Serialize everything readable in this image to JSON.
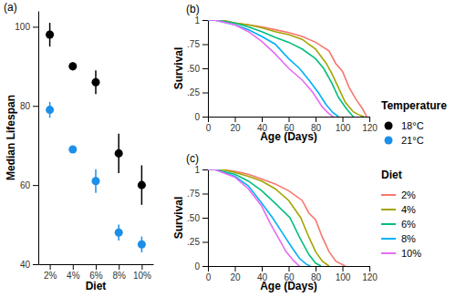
{
  "chart_data": [
    {
      "type": "scatter",
      "title": "(a)",
      "x_label": "Diet",
      "y_label": "Median Lifespan",
      "categories": [
        "2%",
        "4%",
        "6%",
        "8%",
        "10%"
      ],
      "ylim": [
        40,
        104
      ],
      "yticks": [
        40,
        60,
        80,
        100
      ],
      "legend": "right",
      "legend_title": "Temperature",
      "marker": "circle",
      "series": [
        {
          "name": "18°C",
          "color": "#000000",
          "values": [
            98,
            90,
            86,
            68,
            60
          ],
          "errors": [
            3,
            1,
            3,
            5,
            5
          ]
        },
        {
          "name": "21°C",
          "color": "#1C8FE8",
          "values": [
            79,
            69,
            61,
            48,
            45
          ],
          "errors": [
            2,
            0.5,
            3,
            2,
            2
          ]
        }
      ]
    },
    {
      "type": "line",
      "title": "(b)",
      "x_label": "Age (Days)",
      "y_label": "Survival",
      "xlim": [
        0,
        120
      ],
      "xticks": [
        0,
        20,
        40,
        60,
        80,
        100,
        120
      ],
      "ylim": [
        0,
        1
      ],
      "yticks": [
        0,
        {
          "value": 0.25,
          "label": ".25"
        },
        {
          "value": 0.5,
          "label": ".50"
        },
        {
          "value": 0.75,
          "label": ".75"
        },
        1
      ],
      "legend": "right",
      "legend_title": "Diet",
      "series": [
        {
          "name": "2%",
          "color": "#F8766D",
          "x": [
            0,
            10,
            20,
            30,
            40,
            50,
            60,
            70,
            80,
            90,
            95,
            100,
            105,
            110,
            115,
            118
          ],
          "values": [
            1,
            1,
            0.97,
            0.95,
            0.93,
            0.9,
            0.87,
            0.83,
            0.77,
            0.68,
            0.55,
            0.47,
            0.3,
            0.18,
            0.08,
            0
          ]
        },
        {
          "name": "4%",
          "color": "#A3A500",
          "x": [
            0,
            10,
            20,
            30,
            40,
            50,
            60,
            70,
            80,
            88,
            92,
            97,
            102,
            108,
            112,
            116
          ],
          "values": [
            1,
            1,
            0.97,
            0.95,
            0.92,
            0.88,
            0.85,
            0.8,
            0.7,
            0.55,
            0.45,
            0.3,
            0.15,
            0.05,
            0.02,
            0
          ]
        },
        {
          "name": "6%",
          "color": "#00BF7D",
          "x": [
            0,
            5,
            20,
            30,
            40,
            50,
            60,
            70,
            80,
            86,
            92,
            97,
            103,
            108
          ],
          "values": [
            1,
            1,
            0.97,
            0.93,
            0.88,
            0.82,
            0.77,
            0.7,
            0.6,
            0.5,
            0.35,
            0.2,
            0.08,
            0
          ]
        },
        {
          "name": "8%",
          "color": "#00B0F6",
          "x": [
            0,
            5,
            20,
            30,
            40,
            50,
            60,
            68,
            75,
            82,
            88,
            93,
            97
          ],
          "values": [
            1,
            1,
            0.95,
            0.9,
            0.83,
            0.75,
            0.6,
            0.5,
            0.38,
            0.25,
            0.12,
            0.04,
            0
          ]
        },
        {
          "name": "10%",
          "color": "#E76BF3",
          "x": [
            0,
            5,
            20,
            30,
            40,
            50,
            60,
            70,
            78,
            85,
            90,
            93
          ],
          "values": [
            1,
            1,
            0.95,
            0.88,
            0.78,
            0.65,
            0.5,
            0.38,
            0.25,
            0.1,
            0.03,
            0
          ]
        }
      ]
    },
    {
      "type": "line",
      "title": "(c)",
      "x_label": "Age (Days)",
      "y_label": "Survival",
      "xlim": [
        0,
        120
      ],
      "xticks": [
        0,
        20,
        40,
        60,
        80,
        100,
        120
      ],
      "ylim": [
        0,
        1
      ],
      "yticks": [
        0,
        {
          "value": 0.25,
          "label": ".25"
        },
        {
          "value": 0.5,
          "label": ".50"
        },
        {
          "value": 0.75,
          "label": ".75"
        },
        1
      ],
      "series": [
        {
          "color": "#F8766D",
          "x": [
            0,
            10,
            20,
            30,
            40,
            50,
            60,
            70,
            75,
            80,
            85,
            90,
            95,
            102
          ],
          "values": [
            1,
            1,
            0.98,
            0.95,
            0.9,
            0.85,
            0.78,
            0.68,
            0.55,
            0.48,
            0.3,
            0.15,
            0.05,
            0
          ]
        },
        {
          "color": "#A3A500",
          "x": [
            0,
            10,
            20,
            30,
            40,
            50,
            60,
            69,
            75,
            80,
            85,
            90
          ],
          "values": [
            1,
            1,
            0.97,
            0.93,
            0.88,
            0.8,
            0.68,
            0.5,
            0.3,
            0.15,
            0.05,
            0
          ]
        },
        {
          "color": "#00BF7D",
          "x": [
            0,
            5,
            20,
            30,
            40,
            50,
            61,
            68,
            75,
            80,
            84
          ],
          "values": [
            1,
            1,
            0.95,
            0.88,
            0.78,
            0.65,
            0.5,
            0.3,
            0.12,
            0.03,
            0
          ]
        },
        {
          "color": "#00B0F6",
          "x": [
            0,
            5,
            20,
            30,
            40,
            48,
            55,
            62,
            68,
            73,
            76
          ],
          "values": [
            1,
            1,
            0.93,
            0.83,
            0.65,
            0.5,
            0.35,
            0.2,
            0.08,
            0.02,
            0
          ]
        },
        {
          "color": "#E76BF3",
          "x": [
            0,
            5,
            20,
            30,
            40,
            46,
            52,
            58,
            64,
            68
          ],
          "values": [
            1,
            1,
            0.92,
            0.8,
            0.62,
            0.45,
            0.3,
            0.15,
            0.05,
            0
          ]
        }
      ]
    }
  ]
}
